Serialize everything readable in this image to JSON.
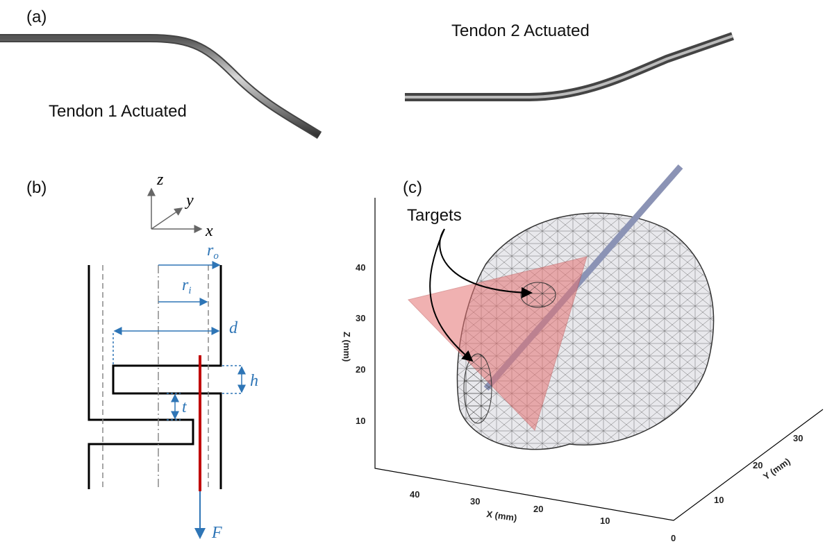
{
  "panel_a": {
    "label": "(a)",
    "caption_right": "Tendon 2 Actuated",
    "caption_left": "Tendon 1 Actuated"
  },
  "panel_b": {
    "label": "(b)",
    "axes": {
      "z": "z",
      "y": "y",
      "x": "x"
    },
    "dims": {
      "ro": "r",
      "ro_sub": "o",
      "ri": "r",
      "ri_sub": "i",
      "d": "d",
      "h": "h",
      "t": "t",
      "F": "F"
    }
  },
  "panel_c": {
    "label": "(c)",
    "annotation": "Targets",
    "z_axis": {
      "label": "Z (mm)",
      "ticks": [
        "40",
        "30",
        "20",
        "10"
      ]
    },
    "x_axis": {
      "label": "X (mm)",
      "ticks": [
        "40",
        "30",
        "20",
        "10"
      ]
    },
    "y_axis": {
      "label": "Y (mm)",
      "ticks": [
        "0",
        "10",
        "20",
        "30"
      ]
    }
  }
}
